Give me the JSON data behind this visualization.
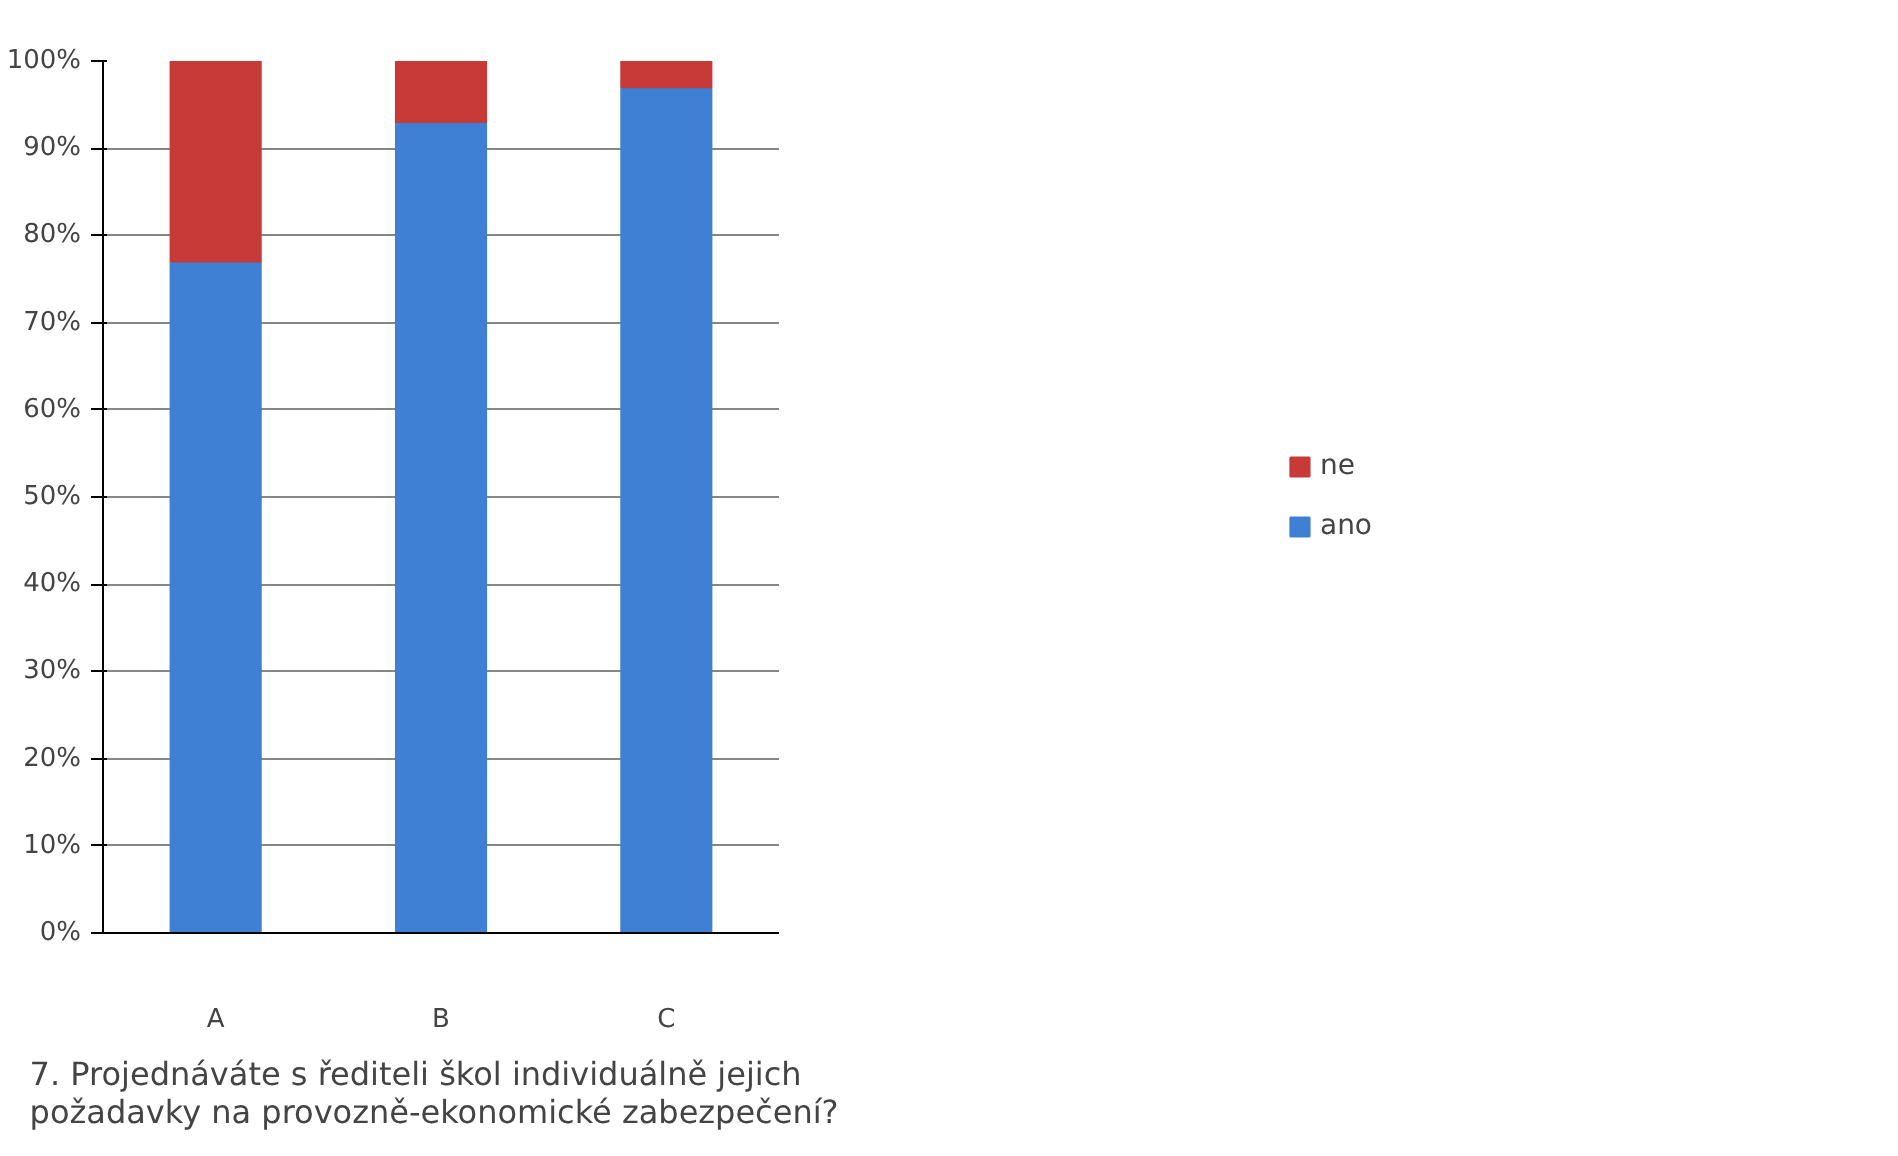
{
  "chart_data": {
    "type": "bar",
    "stacked": true,
    "title": "7.      Projednáváte s řediteli škol individuálně jejich požadavky na provozně-ekonomické zabezpečení?",
    "categories": [
      "A",
      "B",
      "C"
    ],
    "series": [
      {
        "name": "ano",
        "color": "#3f7fd4",
        "values": [
          77,
          93,
          97
        ]
      },
      {
        "name": "ne",
        "color": "#c73a38",
        "values": [
          23,
          7,
          3
        ]
      }
    ],
    "ylim": [
      0,
      100
    ],
    "yticks": [
      {
        "value": 0,
        "label": "0%"
      },
      {
        "value": 10,
        "label": "10%"
      },
      {
        "value": 20,
        "label": "20%"
      },
      {
        "value": 30,
        "label": "30%"
      },
      {
        "value": 40,
        "label": "40%"
      },
      {
        "value": 50,
        "label": "50%"
      },
      {
        "value": 60,
        "label": "60%"
      },
      {
        "value": 70,
        "label": "70%"
      },
      {
        "value": 80,
        "label": "80%"
      },
      {
        "value": 90,
        "label": "90%"
      },
      {
        "value": 100,
        "label": "100%"
      }
    ],
    "grid": "y",
    "legend": "right"
  }
}
